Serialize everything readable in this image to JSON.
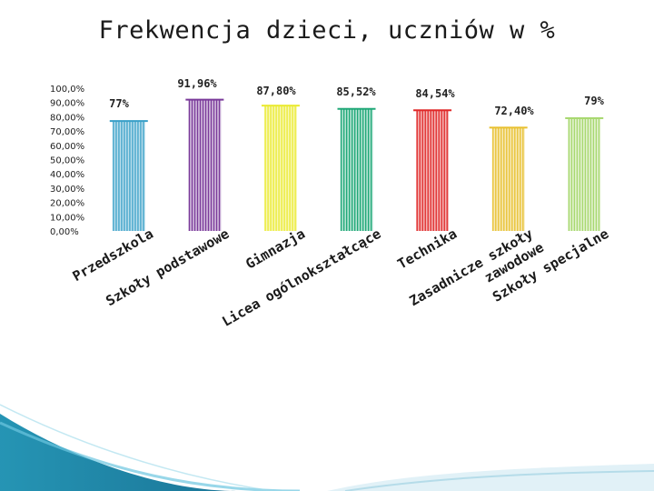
{
  "slide": {
    "title": "Frekwencja dzieci, uczniów  w %"
  },
  "chart_data": {
    "type": "bar",
    "title": "",
    "xlabel": "",
    "ylabel": "",
    "ylim": [
      0,
      100
    ],
    "y_ticks": [
      "0,00%",
      "10,00%",
      "20,00%",
      "30,00%",
      "40,00%",
      "50,00%",
      "60,00%",
      "70,00%",
      "80,00%",
      "90,00%",
      "100,0%"
    ],
    "categories": [
      "Przedszkola",
      "Szkoły podstawowe",
      "Gimnazja",
      "Licea ogólnokształcące",
      "Technika",
      "Zasadnicze szkoły zawodowe",
      "Szkoły specjalne"
    ],
    "values": [
      77,
      91.96,
      87.8,
      85.52,
      84.54,
      72.4,
      79
    ],
    "data_labels": [
      "77%",
      "91,96%",
      "87,80%",
      "85,52%",
      "84,54%",
      "72,40%",
      "79%"
    ],
    "colors": [
      "#3aa0c8",
      "#7a3a9a",
      "#eaea30",
      "#20a878",
      "#e02828",
      "#e8c030",
      "#a8d870"
    ],
    "grid": false,
    "legend": "none"
  }
}
